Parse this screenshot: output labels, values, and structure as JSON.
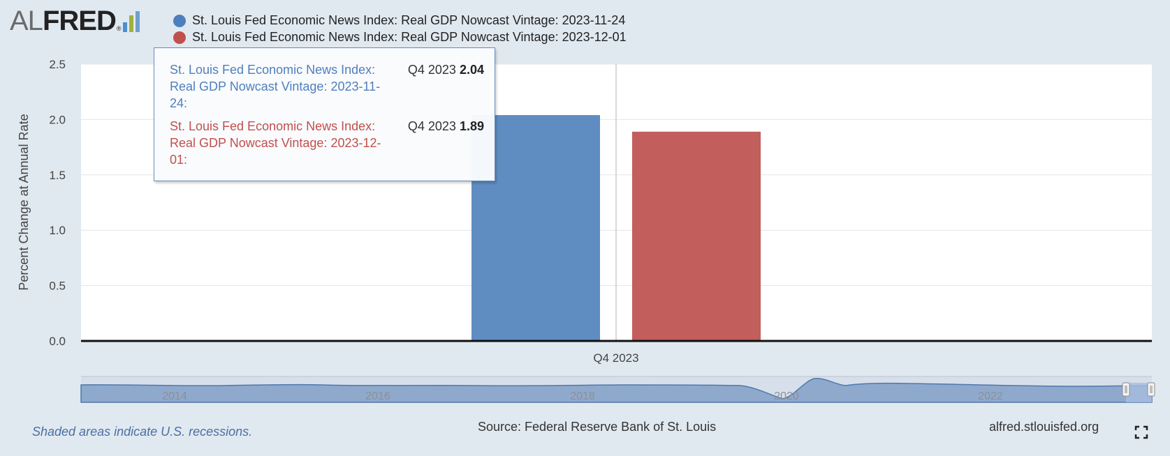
{
  "logo": {
    "al": "AL",
    "fred": "FRED",
    "reg": "®",
    "bar_colors": [
      "#4a8fd1",
      "#9fb13c",
      "#6f9fcf"
    ]
  },
  "legend": [
    {
      "label": "St. Louis Fed Economic News Index: Real GDP Nowcast Vintage: 2023-11-24",
      "color": "#4e7fbd"
    },
    {
      "label": "St. Louis Fed Economic News Index: Real GDP Nowcast Vintage: 2023-12-01",
      "color": "#c0504d"
    }
  ],
  "tooltip": {
    "rows": [
      {
        "lines": [
          "St. Louis Fed Economic News Index:",
          "Real GDP Nowcast Vintage: 2023-11-",
          "24:"
        ],
        "period": "Q4 2023",
        "value": "2.04",
        "color": "#4e7fbd"
      },
      {
        "lines": [
          "St. Louis Fed Economic News Index:",
          "Real GDP Nowcast Vintage: 2023-12-",
          "01:"
        ],
        "period": "Q4 2023",
        "value": "1.89",
        "color": "#c0504d"
      }
    ]
  },
  "chart_data": {
    "type": "bar",
    "ylabel": "Percent Change at Annual Rate",
    "xlabel": "",
    "categories": [
      "Q4 2023"
    ],
    "ylim": [
      0,
      2.5
    ],
    "yticks": [
      "0.0",
      "0.5",
      "1.0",
      "1.5",
      "2.0",
      "2.5"
    ],
    "grid": true,
    "legend_position": "top",
    "series": [
      {
        "name": "St. Louis Fed Economic News Index: Real GDP Nowcast Vintage: 2023-11-24",
        "values": [
          2.04
        ],
        "color": "#5f8dc1"
      },
      {
        "name": "St. Louis Fed Economic News Index: Real GDP Nowcast Vintage: 2023-12-01",
        "values": [
          1.89
        ],
        "color": "#c25e5c"
      }
    ],
    "navigator": {
      "labels": [
        "2014",
        "2016",
        "2018",
        "2020",
        "2022"
      ]
    }
  },
  "footer": {
    "recession_note": "Shaded areas indicate U.S. recessions.",
    "source": "Source: Federal Reserve Bank of St. Louis",
    "site": "alfred.stlouisfed.org"
  }
}
